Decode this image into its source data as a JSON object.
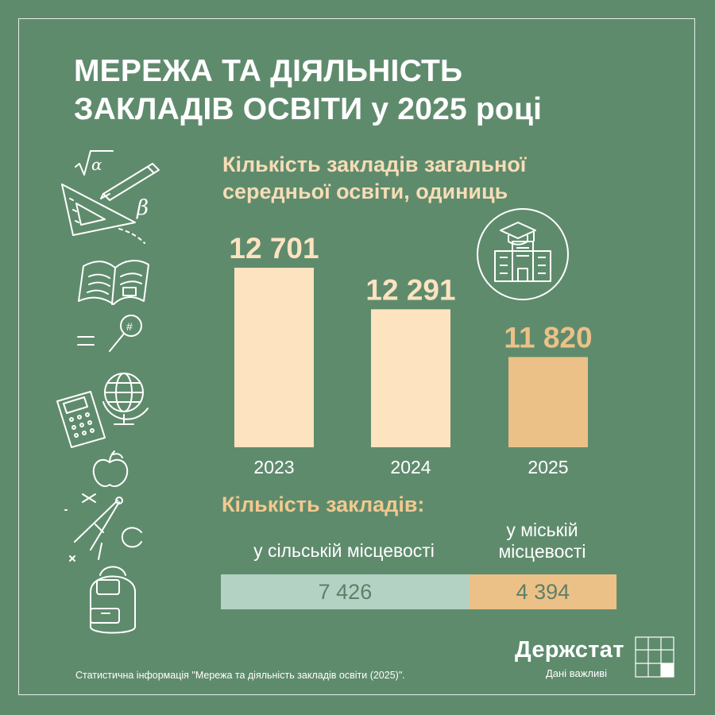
{
  "title_lines": [
    "МЕРЕЖА ТА ДІЯЛЬНІСТЬ",
    "ЗАКЛАДІВ ОСВІТИ у 2025 році"
  ],
  "colors": {
    "background": "#5f8b6d",
    "bar_light": "#fde3c0",
    "bar_highlight": "#ebc188",
    "value_light": "#fde3c0",
    "value_highlight": "#ebc188",
    "rural": "#b3d2c3",
    "urban": "#ebc188"
  },
  "icons": [
    "school-building-icon",
    "geometry-tools-icon",
    "open-book-icon",
    "magnifier-icon",
    "calculator-icon",
    "globe-icon",
    "apple-icon",
    "compass-icon",
    "backpack-icon"
  ],
  "chart_data": {
    "type": "bar",
    "title_lines": [
      "Кількість закладів загальної",
      "середньої освіти, одиниць"
    ],
    "categories": [
      "2023",
      "2024",
      "2025"
    ],
    "values": [
      12701,
      12291,
      11820
    ],
    "value_labels": [
      "12 701",
      "12 291",
      "11 820"
    ],
    "highlight_index": 2,
    "ylim": [
      10930,
      12701
    ]
  },
  "locations": {
    "title": "Кількість закладів:",
    "rural_label": "у сільській місцевості",
    "urban_label_lines": [
      "у міській",
      "місцевості"
    ],
    "rural_value": 7426,
    "urban_value": 4394,
    "rural_value_label": "7 426",
    "urban_value_label": "4 394"
  },
  "logo": {
    "name": "Держстат",
    "tagline": "Дані важливі"
  },
  "source": "Статистична інформація \"Мережа та діяльність закладів освіти (2025)\"."
}
